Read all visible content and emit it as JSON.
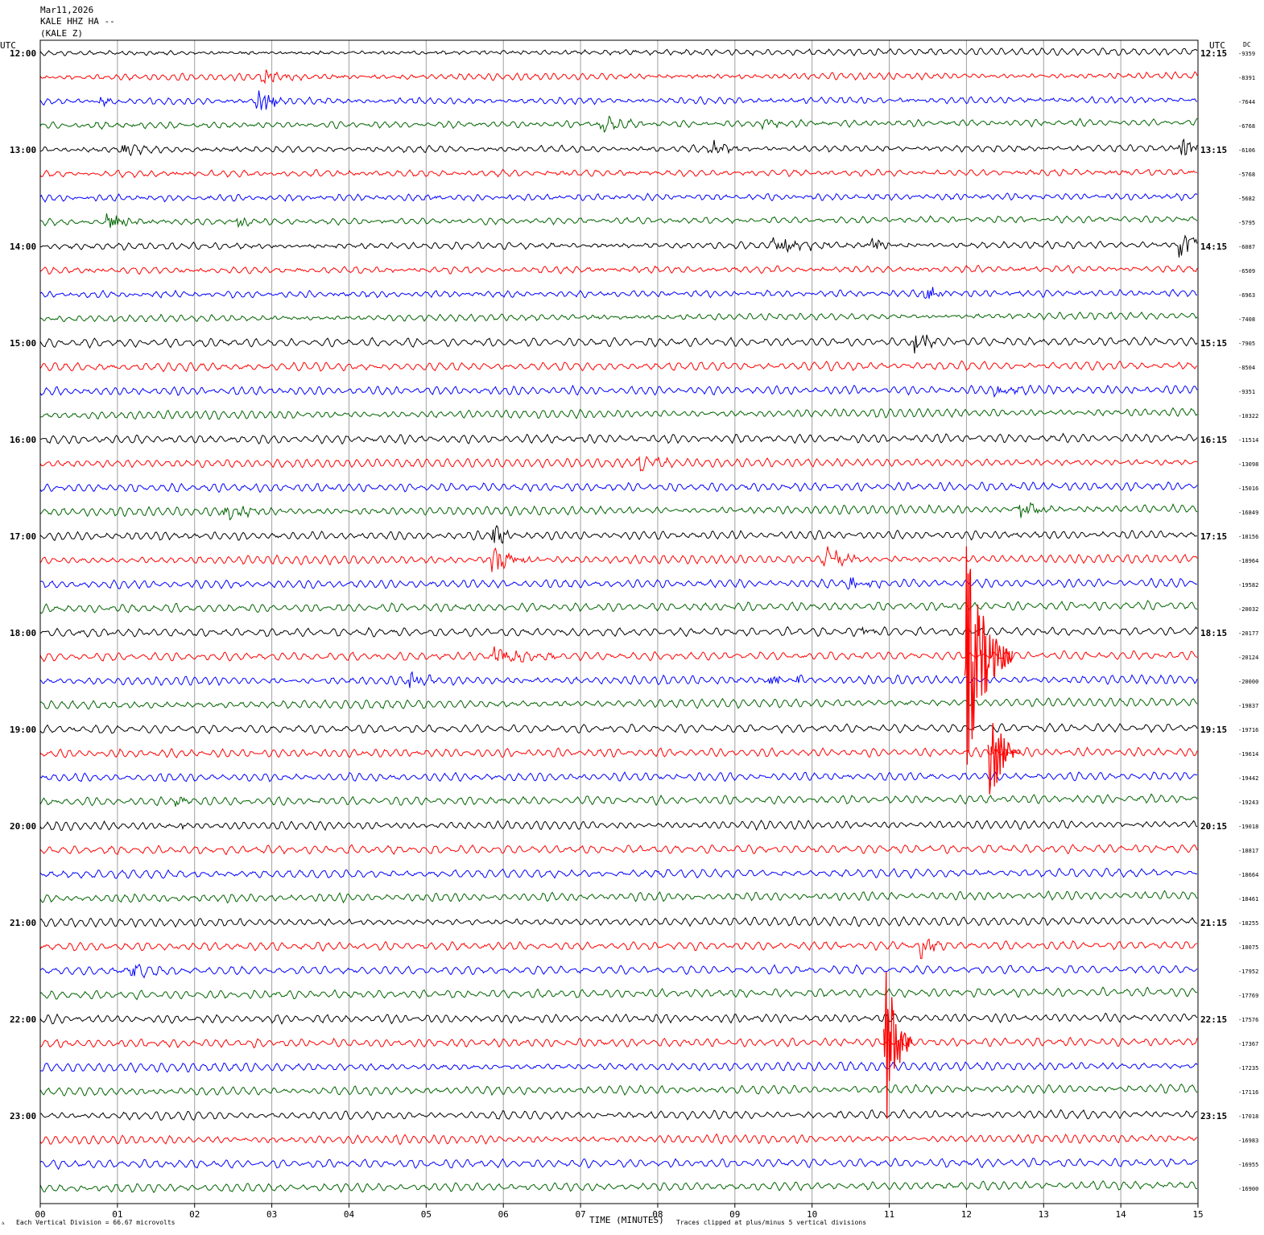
{
  "header": {
    "date": "Mar11,2026",
    "station_line": "KALE HHZ HA --",
    "station_short": "(KALE Z)"
  },
  "left_axis_label": "UTC",
  "right_axis_label": "UTC",
  "dc_label": "DC",
  "footer": {
    "mark": "ᴧ",
    "scale_note": "Each Vertical Division =    66.67 microvolts",
    "x_axis_title": "TIME (MINUTES)",
    "clip_note": "Traces clipped at plus/minus 5 vertical divisions"
  },
  "colors": {
    "trace_cycle": [
      "#000000",
      "#ff0000",
      "#0000ff",
      "#006400"
    ],
    "grid": "#a0a0a0",
    "frame": "#000000"
  },
  "chart_data": {
    "type": "line",
    "description_type": "helicorder",
    "x_ticks": [
      "00",
      "01",
      "02",
      "03",
      "04",
      "05",
      "06",
      "07",
      "08",
      "09",
      "10",
      "11",
      "12",
      "13",
      "14",
      "15"
    ],
    "xlim": [
      0,
      15
    ],
    "x_unit": "minutes",
    "row_interval_minutes": 15,
    "left_hour_labels": [
      "12:00",
      "13:00",
      "14:00",
      "15:00",
      "16:00",
      "17:00",
      "18:00",
      "19:00",
      "20:00",
      "21:00",
      "22:00",
      "23:00"
    ],
    "right_hour_labels": [
      "12:15",
      "13:15",
      "14:15",
      "15:15",
      "16:15",
      "17:15",
      "18:15",
      "19:15",
      "20:15",
      "21:15",
      "22:15",
      "23:15"
    ],
    "dc_offsets": [
      "-9359",
      "-8391",
      "-7644",
      "-6768",
      "-6106",
      "-5768",
      "-5682",
      "-5795",
      "-6087",
      "-6509",
      "-6963",
      "-7408",
      "-7905",
      "-8504",
      "-9351",
      "-10322",
      "-11514",
      "-13098",
      "-15016",
      "-16849",
      "-18156",
      "-18964",
      "-19582",
      "-20032",
      "-20177",
      "-20124",
      "-20000",
      "-19837",
      "-19716",
      "-19614",
      "-19442",
      "-19243",
      "-19018",
      "-18817",
      "-18664",
      "-18461",
      "-18255",
      "-18075",
      "-17952",
      "-17769",
      "-17576",
      "-17367",
      "-17235",
      "-17116",
      "-17018",
      "-16983",
      "-16955",
      "-16900"
    ],
    "events": [
      {
        "row": 1,
        "minute": 2.9,
        "amp": 1.0,
        "dur": 0.5
      },
      {
        "row": 2,
        "minute": 0.8,
        "amp": 0.7,
        "dur": 0.3
      },
      {
        "row": 2,
        "minute": 2.85,
        "amp": 1.6,
        "dur": 0.4
      },
      {
        "row": 3,
        "minute": 7.3,
        "amp": 1.0,
        "dur": 0.6
      },
      {
        "row": 3,
        "minute": 9.4,
        "amp": 0.7,
        "dur": 0.4
      },
      {
        "row": 4,
        "minute": 1.1,
        "amp": 0.9,
        "dur": 0.4
      },
      {
        "row": 4,
        "minute": 8.7,
        "amp": 1.0,
        "dur": 0.4
      },
      {
        "row": 4,
        "minute": 14.8,
        "amp": 1.2,
        "dur": 0.4
      },
      {
        "row": 7,
        "minute": 0.9,
        "amp": 1.0,
        "dur": 0.7
      },
      {
        "row": 7,
        "minute": 2.6,
        "amp": 0.7,
        "dur": 0.4
      },
      {
        "row": 8,
        "minute": 9.5,
        "amp": 1.2,
        "dur": 1.0
      },
      {
        "row": 8,
        "minute": 10.8,
        "amp": 0.9,
        "dur": 0.5
      },
      {
        "row": 8,
        "minute": 14.8,
        "amp": 2.0,
        "dur": 0.4
      },
      {
        "row": 10,
        "minute": 11.5,
        "amp": 0.8,
        "dur": 0.4
      },
      {
        "row": 12,
        "minute": 11.35,
        "amp": 2.4,
        "dur": 0.25
      },
      {
        "row": 14,
        "minute": 12.4,
        "amp": 0.6,
        "dur": 0.8
      },
      {
        "row": 17,
        "minute": 7.8,
        "amp": 0.9,
        "dur": 0.5
      },
      {
        "row": 19,
        "minute": 2.4,
        "amp": 0.9,
        "dur": 0.9
      },
      {
        "row": 19,
        "minute": 12.7,
        "amp": 1.3,
        "dur": 0.5
      },
      {
        "row": 20,
        "minute": 5.9,
        "amp": 1.3,
        "dur": 0.4
      },
      {
        "row": 21,
        "minute": 5.9,
        "amp": 1.8,
        "dur": 0.5
      },
      {
        "row": 21,
        "minute": 10.2,
        "amp": 1.6,
        "dur": 0.5
      },
      {
        "row": 22,
        "minute": 10.5,
        "amp": 0.6,
        "dur": 0.6
      },
      {
        "row": 24,
        "minute": 10.7,
        "amp": 0.7,
        "dur": 0.3
      },
      {
        "row": 25,
        "minute": 5.9,
        "amp": 1.5,
        "dur": 0.8
      },
      {
        "row": 26,
        "minute": 4.8,
        "amp": 1.5,
        "dur": 0.4
      },
      {
        "row": 26,
        "minute": 9.5,
        "amp": 1.0,
        "dur": 0.15
      },
      {
        "row": 26,
        "minute": 9.85,
        "amp": 0.7,
        "dur": 0.15
      },
      {
        "row": 31,
        "minute": 1.8,
        "amp": 0.7,
        "dur": 0.4
      },
      {
        "row": 32,
        "minute": 1.8,
        "amp": 0.5,
        "dur": 0.3
      },
      {
        "row": 37,
        "minute": 11.45,
        "amp": 1.6,
        "dur": 0.3
      },
      {
        "row": 38,
        "minute": 1.2,
        "amp": 0.9,
        "dur": 0.7
      }
    ],
    "clipped_events": [
      {
        "row": 25,
        "minute": 12.0,
        "span_rows": 10,
        "dur": 0.6
      },
      {
        "row": 29,
        "minute": 12.3,
        "span_rows": 5,
        "dur": 0.4
      },
      {
        "row": 41,
        "minute": 10.95,
        "span_rows": 8,
        "dur": 0.35
      }
    ]
  }
}
